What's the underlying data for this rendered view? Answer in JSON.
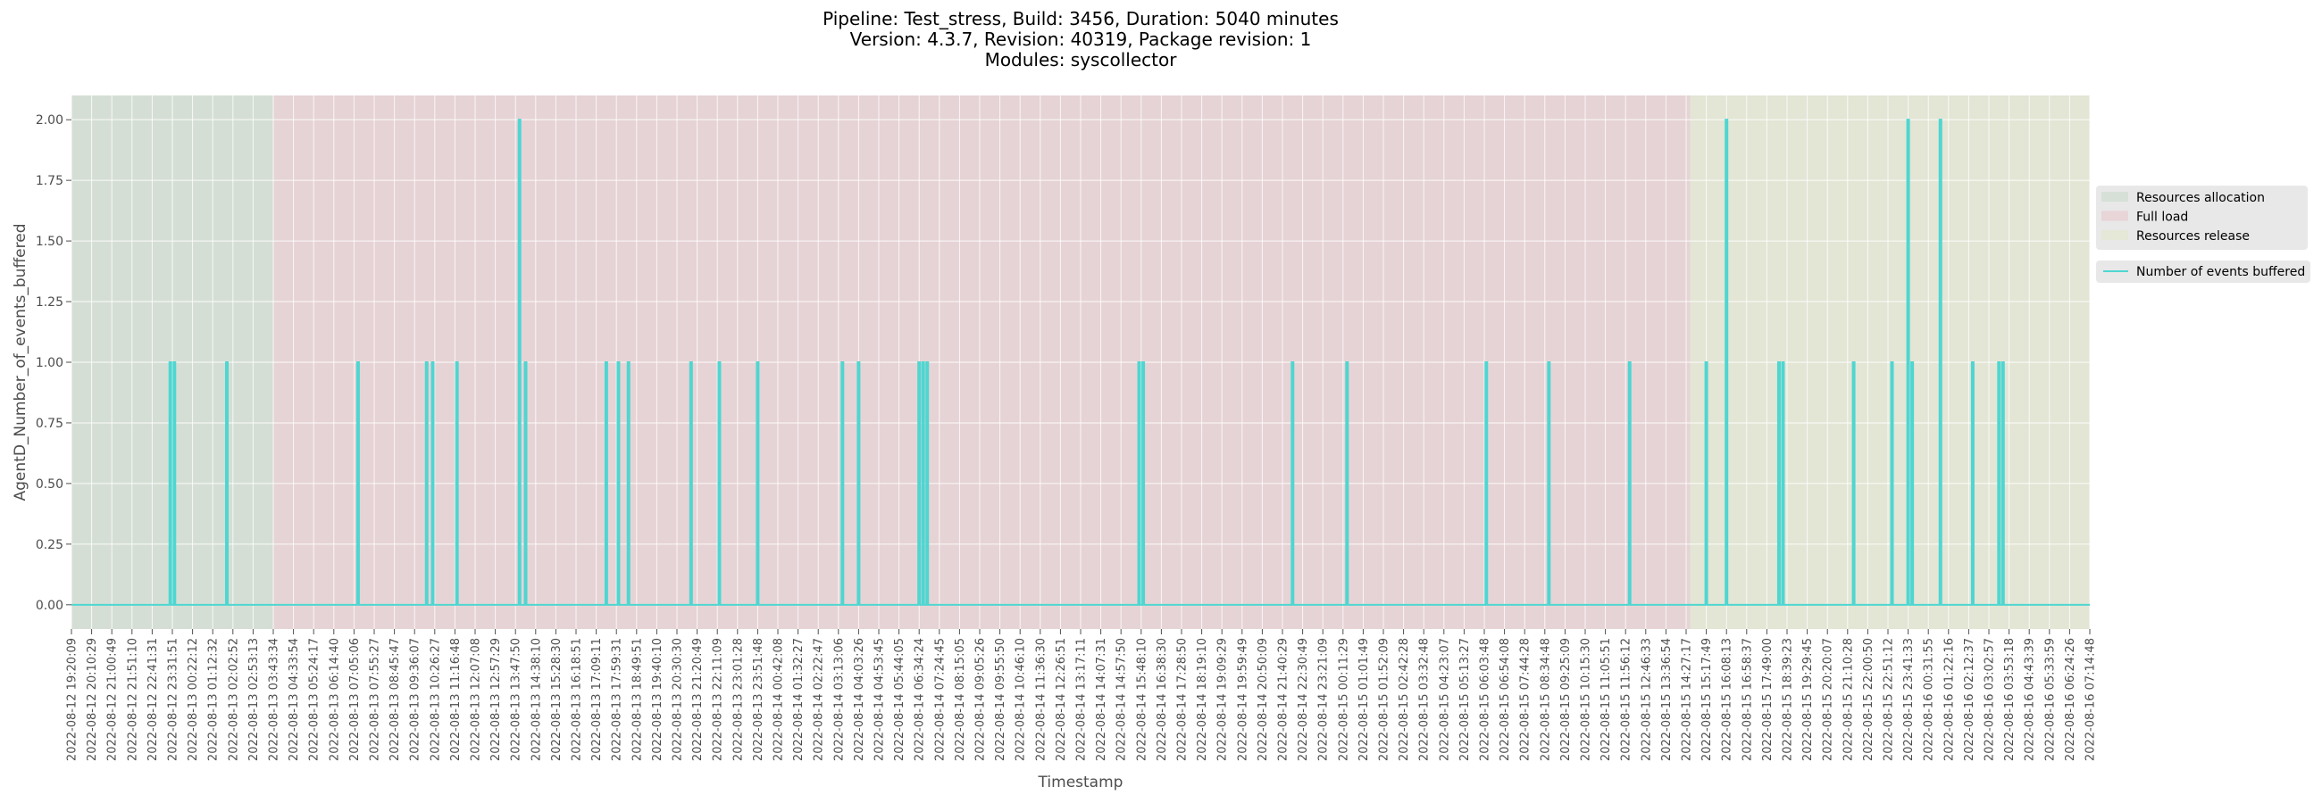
{
  "chart_data": {
    "type": "line",
    "title_lines": [
      "Pipeline: Test_stress, Build: 3456, Duration: 5040 minutes",
      "Version: 4.3.7, Revision: 40319, Package revision: 1",
      "Modules: syscollector"
    ],
    "xlabel": "Timestamp",
    "ylabel": "AgentD_Number_of_events_buffered",
    "ylim": [
      -0.1,
      2.1
    ],
    "yticks": [
      "0.00",
      "0.25",
      "0.50",
      "0.75",
      "1.00",
      "1.25",
      "1.50",
      "1.75",
      "2.00"
    ],
    "ytick_values": [
      0,
      0.25,
      0.5,
      0.75,
      1.0,
      1.25,
      1.5,
      1.75,
      2.0
    ],
    "grid": true,
    "legend_placement": "right",
    "x_ticks": [
      "2022-08-12 19:20:09",
      "2022-08-12 20:10:29",
      "2022-08-12 21:00:49",
      "2022-08-12 21:51:10",
      "2022-08-12 22:41:31",
      "2022-08-12 23:31:51",
      "2022-08-13 00:22:12",
      "2022-08-13 01:12:32",
      "2022-08-13 02:02:52",
      "2022-08-13 02:53:13",
      "2022-08-13 03:43:34",
      "2022-08-13 04:33:54",
      "2022-08-13 05:24:17",
      "2022-08-13 06:14:40",
      "2022-08-13 07:05:06",
      "2022-08-13 07:55:27",
      "2022-08-13 08:45:47",
      "2022-08-13 09:36:07",
      "2022-08-13 10:26:27",
      "2022-08-13 11:16:48",
      "2022-08-13 12:07:08",
      "2022-08-13 12:57:29",
      "2022-08-13 13:47:50",
      "2022-08-13 14:38:10",
      "2022-08-13 15:28:30",
      "2022-08-13 16:18:51",
      "2022-08-13 17:09:11",
      "2022-08-13 17:59:31",
      "2022-08-13 18:49:51",
      "2022-08-13 19:40:10",
      "2022-08-13 20:30:30",
      "2022-08-13 21:20:49",
      "2022-08-13 22:11:09",
      "2022-08-13 23:01:28",
      "2022-08-13 23:51:48",
      "2022-08-14 00:42:08",
      "2022-08-14 01:32:27",
      "2022-08-14 02:22:47",
      "2022-08-14 03:13:06",
      "2022-08-14 04:03:26",
      "2022-08-14 04:53:45",
      "2022-08-14 05:44:05",
      "2022-08-14 06:34:24",
      "2022-08-14 07:24:45",
      "2022-08-14 08:15:05",
      "2022-08-14 09:05:26",
      "2022-08-14 09:55:50",
      "2022-08-14 10:46:10",
      "2022-08-14 11:36:30",
      "2022-08-14 12:26:51",
      "2022-08-14 13:17:11",
      "2022-08-14 14:07:31",
      "2022-08-14 14:57:50",
      "2022-08-14 15:48:10",
      "2022-08-14 16:38:30",
      "2022-08-14 17:28:50",
      "2022-08-14 18:19:10",
      "2022-08-14 19:09:29",
      "2022-08-14 19:59:49",
      "2022-08-14 20:50:09",
      "2022-08-14 21:40:29",
      "2022-08-14 22:30:49",
      "2022-08-14 23:21:09",
      "2022-08-15 00:11:29",
      "2022-08-15 01:01:49",
      "2022-08-15 01:52:09",
      "2022-08-15 02:42:28",
      "2022-08-15 03:32:48",
      "2022-08-15 04:23:07",
      "2022-08-15 05:13:27",
      "2022-08-15 06:03:48",
      "2022-08-15 06:54:08",
      "2022-08-15 07:44:28",
      "2022-08-15 08:34:48",
      "2022-08-15 09:25:09",
      "2022-08-15 10:15:30",
      "2022-08-15 11:05:51",
      "2022-08-15 11:56:12",
      "2022-08-15 12:46:33",
      "2022-08-15 13:36:54",
      "2022-08-15 14:27:17",
      "2022-08-15 15:17:49",
      "2022-08-15 16:08:13",
      "2022-08-15 16:58:37",
      "2022-08-15 17:49:00",
      "2022-08-15 18:39:23",
      "2022-08-15 19:29:45",
      "2022-08-15 20:20:07",
      "2022-08-15 21:10:28",
      "2022-08-15 22:00:50",
      "2022-08-15 22:51:12",
      "2022-08-15 23:41:33",
      "2022-08-16 00:31:55",
      "2022-08-16 01:22:16",
      "2022-08-16 02:12:37",
      "2022-08-16 03:02:57",
      "2022-08-16 03:53:18",
      "2022-08-16 04:43:39",
      "2022-08-16 05:33:59",
      "2022-08-16 06:24:26",
      "2022-08-16 07:14:48"
    ],
    "regions": [
      {
        "name": "Resources allocation",
        "start_index": 0,
        "end_index": 10,
        "color": "#c9d9c9"
      },
      {
        "name": "Full load",
        "start_index": 10,
        "end_index": 80.2,
        "color": "#e7c4c9"
      },
      {
        "name": "Resources release",
        "start_index": 80.2,
        "end_index": 100,
        "color": "#e2e6c8"
      }
    ],
    "series": [
      {
        "name": "Number of events buffered",
        "color": "#4fd6d1",
        "spikes": [
          {
            "at": 4.9,
            "value": 1
          },
          {
            "at": 5.1,
            "value": 1
          },
          {
            "at": 7.7,
            "value": 1
          },
          {
            "at": 14.2,
            "value": 1
          },
          {
            "at": 17.6,
            "value": 1
          },
          {
            "at": 17.9,
            "value": 1
          },
          {
            "at": 19.1,
            "value": 1
          },
          {
            "at": 22.2,
            "value": 2
          },
          {
            "at": 22.5,
            "value": 1
          },
          {
            "at": 26.5,
            "value": 1
          },
          {
            "at": 27.1,
            "value": 1
          },
          {
            "at": 27.6,
            "value": 1
          },
          {
            "at": 30.7,
            "value": 1
          },
          {
            "at": 32.1,
            "value": 1
          },
          {
            "at": 34.0,
            "value": 1
          },
          {
            "at": 38.2,
            "value": 1
          },
          {
            "at": 39.0,
            "value": 1
          },
          {
            "at": 42.0,
            "value": 1
          },
          {
            "at": 42.2,
            "value": 1
          },
          {
            "at": 42.4,
            "value": 1
          },
          {
            "at": 52.9,
            "value": 1
          },
          {
            "at": 53.1,
            "value": 1
          },
          {
            "at": 60.5,
            "value": 1
          },
          {
            "at": 63.2,
            "value": 1
          },
          {
            "at": 70.1,
            "value": 1
          },
          {
            "at": 73.2,
            "value": 1
          },
          {
            "at": 77.2,
            "value": 1
          },
          {
            "at": 81.0,
            "value": 1
          },
          {
            "at": 82.0,
            "value": 2
          },
          {
            "at": 84.6,
            "value": 1
          },
          {
            "at": 84.8,
            "value": 1
          },
          {
            "at": 88.3,
            "value": 1
          },
          {
            "at": 90.2,
            "value": 1
          },
          {
            "at": 91.0,
            "value": 2
          },
          {
            "at": 91.2,
            "value": 1
          },
          {
            "at": 92.6,
            "value": 2
          },
          {
            "at": 94.2,
            "value": 1
          },
          {
            "at": 95.5,
            "value": 1
          },
          {
            "at": 95.7,
            "value": 1
          }
        ]
      }
    ],
    "legend": {
      "regions": [
        "Resources allocation",
        "Full load",
        "Resources release"
      ],
      "lines": [
        "Number of events buffered"
      ]
    }
  },
  "colors": {
    "plot_background": "#e5e5e5",
    "grid": "#ffffff",
    "legend_background": "#e5e5e5",
    "tick_text": "#4d4d4d"
  }
}
